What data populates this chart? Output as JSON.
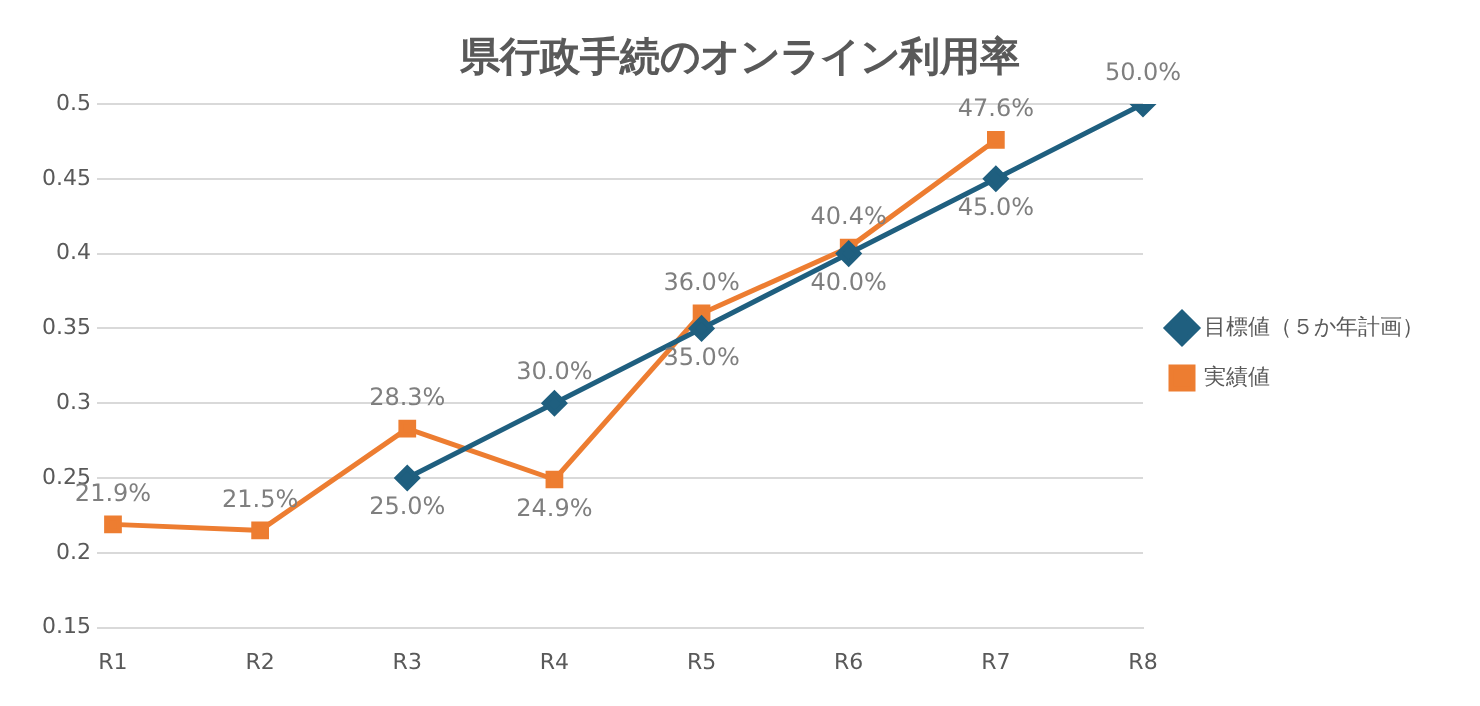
{
  "chart_data": {
    "type": "line",
    "title": "県行政手続のオンライン利用率",
    "categories": [
      "R1",
      "R2",
      "R3",
      "R4",
      "R5",
      "R6",
      "R7",
      "R8"
    ],
    "series": [
      {
        "name": "目標値（５か年計画）",
        "color": "#1f5f7f",
        "marker": "diamond",
        "values": [
          null,
          null,
          0.25,
          0.3,
          0.35,
          0.4,
          0.45,
          0.5
        ],
        "value_labels": [
          null,
          null,
          "25.0%",
          "30.0%",
          "35.0%",
          "40.0%",
          "45.0%",
          "50.0%"
        ]
      },
      {
        "name": "実績値",
        "color": "#ed7d31",
        "marker": "square",
        "values": [
          0.219,
          0.215,
          0.283,
          0.249,
          0.36,
          0.404,
          0.476,
          null
        ],
        "value_labels": [
          "21.9%",
          "21.5%",
          "28.3%",
          "24.9%",
          "36.0%",
          "40.4%",
          "47.6%",
          null
        ]
      }
    ],
    "ylim": [
      0.15,
      0.5
    ],
    "yticks": [
      0.15,
      0.2,
      0.25,
      0.3,
      0.35,
      0.4,
      0.45,
      0.5
    ],
    "grid": "y",
    "legend": "right",
    "line_style": "solid"
  }
}
